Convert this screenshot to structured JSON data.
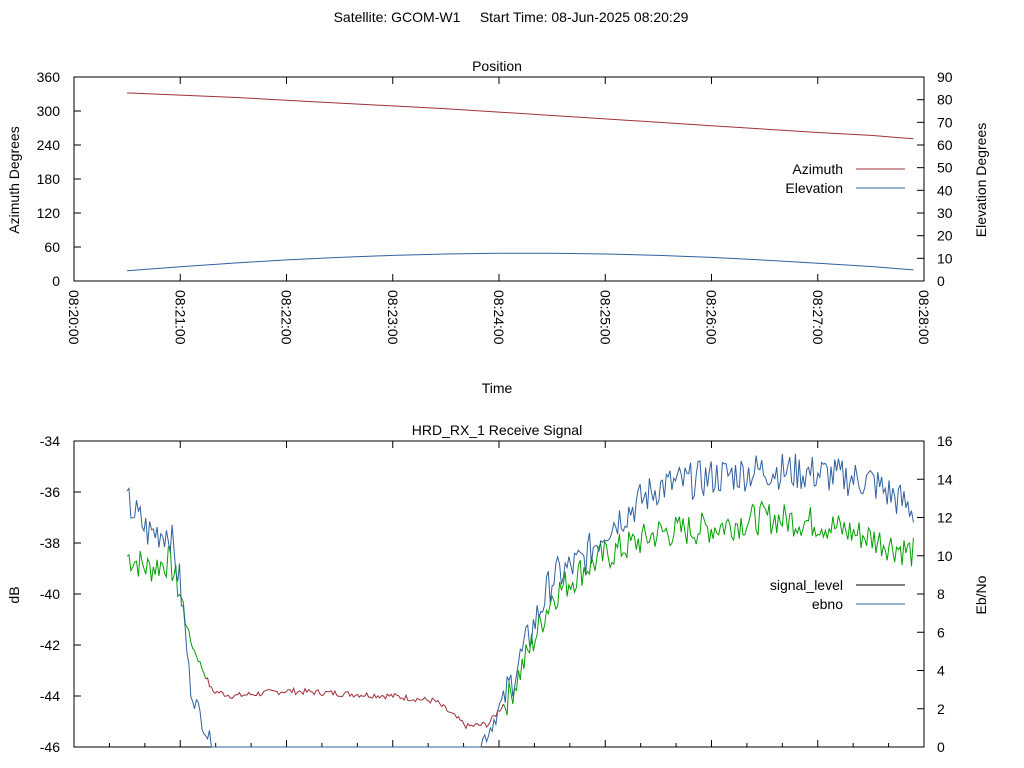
{
  "title": "Satellite: GCOM-W1     Start Time: 08-Jun-2025 08:20:29",
  "chart_data": [
    {
      "type": "line",
      "title": "Position",
      "xlabel": "Time",
      "ylabel": "Azimuth Degrees",
      "y2label": "Elevation Degrees",
      "x_ticks": [
        "08:20:00",
        "08:21:00",
        "08:22:00",
        "08:23:00",
        "08:24:00",
        "08:25:00",
        "08:26:00",
        "08:27:00",
        "08:28:00"
      ],
      "y_ticks": [
        "0",
        "60",
        "120",
        "180",
        "240",
        "300",
        "360"
      ],
      "y2_ticks": [
        "0",
        "10",
        "20",
        "30",
        "40",
        "50",
        "60",
        "70",
        "80",
        "90"
      ],
      "ylim": [
        0,
        360
      ],
      "y2lim": [
        0,
        90
      ],
      "grid": false,
      "legend": "right",
      "colors": {
        "azimuth": "#a0303a",
        "elevation": "#3060a0"
      },
      "series": [
        {
          "name": "Azimuth",
          "axis": "y",
          "x_minutes": [
            0.5,
            1,
            1.5,
            2,
            2.5,
            3,
            3.5,
            4,
            4.5,
            5,
            5.5,
            6,
            6.5,
            7,
            7.5,
            7.9
          ],
          "values": [
            332,
            328,
            324,
            319,
            314,
            309,
            304,
            298,
            292,
            286,
            280,
            274,
            268,
            262,
            257,
            251
          ]
        },
        {
          "name": "Elevation",
          "axis": "y2",
          "x_minutes": [
            0.5,
            1,
            1.5,
            2,
            2.5,
            3,
            3.5,
            4,
            4.5,
            5,
            5.5,
            6,
            6.5,
            7,
            7.5,
            7.9
          ],
          "values": [
            4.5,
            6.3,
            7.9,
            9.3,
            10.4,
            11.3,
            11.9,
            12.2,
            12.2,
            11.9,
            11.3,
            10.4,
            9.2,
            7.8,
            6.4,
            4.9
          ]
        }
      ]
    },
    {
      "type": "line",
      "title": "HRD_RX_1 Receive Signal",
      "ylabel": "dB",
      "y2label": "Eb/No",
      "y_ticks": [
        "-46",
        "-44",
        "-42",
        "-40",
        "-38",
        "-36",
        "-34"
      ],
      "y2_ticks": [
        "0",
        "2",
        "4",
        "6",
        "8",
        "10",
        "12",
        "14",
        "16"
      ],
      "ylim": [
        -46,
        -34
      ],
      "y2lim": [
        0,
        16
      ],
      "grid": false,
      "legend": "right",
      "colors": {
        "signal_level": "#000000",
        "ebno": "#3060a0",
        "low_signal": "#a0303a",
        "locked_signal": "#00a000"
      },
      "series": [
        {
          "name": "signal_level",
          "axis": "y",
          "x_minutes": [
            0.5,
            0.7,
            0.9,
            1.0,
            1.1,
            1.3,
            1.5,
            2.0,
            2.5,
            3.0,
            3.4,
            3.7,
            3.9,
            4.1,
            4.5,
            4.8,
            5.0,
            5.5,
            6.0,
            6.5,
            7.0,
            7.5,
            7.9
          ],
          "values": [
            -38.5,
            -39.0,
            -38.7,
            -40.0,
            -41.9,
            -43.8,
            -44.0,
            -43.8,
            -43.9,
            -44.0,
            -44.2,
            -45.2,
            -45.1,
            -44.0,
            -40.1,
            -39.0,
            -38.5,
            -37.6,
            -37.4,
            -37.0,
            -37.2,
            -37.8,
            -38.4
          ]
        },
        {
          "name": "ebno",
          "axis": "y2",
          "x_minutes": [
            0.5,
            0.7,
            0.9,
            1.0,
            1.1,
            1.3,
            2.0,
            3.0,
            3.8,
            3.9,
            4.1,
            4.5,
            4.8,
            5.0,
            5.5,
            6.0,
            6.5,
            7.0,
            7.5,
            7.9
          ],
          "values": [
            12.8,
            11.2,
            11.3,
            8.5,
            3.0,
            0,
            0,
            0,
            0,
            0.8,
            3.2,
            8.8,
            9.8,
            11.4,
            13.6,
            14.1,
            14.5,
            14.3,
            13.9,
            12.4
          ]
        }
      ]
    }
  ]
}
